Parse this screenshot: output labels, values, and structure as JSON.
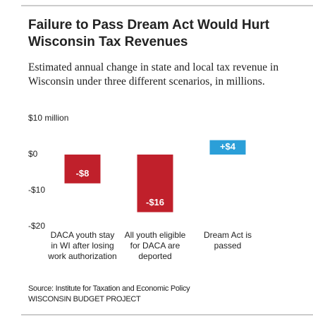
{
  "chart_data": {
    "type": "bar",
    "title": "Failure to Pass Dream Act Would Hurt Wisconsin Tax Revenues",
    "subtitle": "Estimated annual change in state and local tax revenue in Wisconsin under three different scenarios, in millions.",
    "categories": [
      "DACA youth stay in WI after losing work authorization",
      "All youth eligible for DACA are deported",
      "Dream Act is passed"
    ],
    "values": [
      -8,
      -16,
      4
    ],
    "value_labels": [
      "-$8",
      "-$16",
      "+$4"
    ],
    "colors": [
      "#c0202b",
      "#c0202b",
      "#2b9fd8"
    ],
    "ylim": [
      -20,
      10
    ],
    "yticks": [
      {
        "value": 10,
        "label": "$10 million"
      },
      {
        "value": 0,
        "label": "$0"
      },
      {
        "value": -10,
        "label": "-$10"
      },
      {
        "value": -20,
        "label": "-$20"
      }
    ],
    "grid": false,
    "source": "Source: Institute for Taxation and Economic Policy",
    "credit": "WISCONSIN BUDGET PROJECT"
  }
}
